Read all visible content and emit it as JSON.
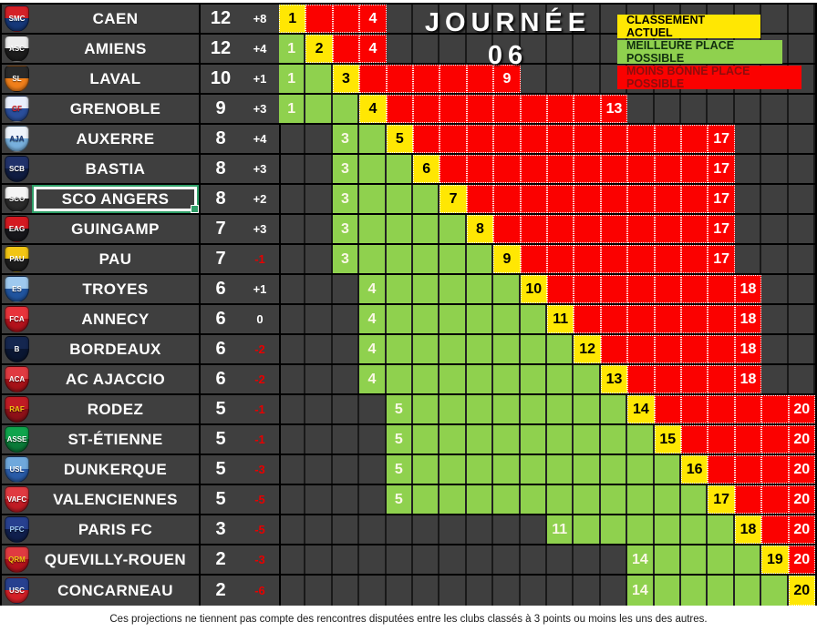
{
  "header": {
    "title": "JOURNÉE 06"
  },
  "legend": {
    "current": "CLASSEMENT ACTUEL",
    "best": "MEILLEURE PLACE POSSIBLE",
    "worst": "MOINS BONNE PLACE POSSIBLE"
  },
  "footer": {
    "note": "Ces projections ne tiennent pas compte des rencontres disputées entre les clubs classés à 3 points ou moins les uns des autres."
  },
  "grid": {
    "positions": 20
  },
  "colors": {
    "current_cell": "#ffe703",
    "best_cell": "#8fd14e",
    "worst_cell": "#fb0100",
    "background": "#3f3f3f",
    "negative_diff": "#e60000"
  },
  "standings": [
    {
      "name": "CAEN",
      "points": "12",
      "diff": "+8",
      "best": 1,
      "current": 1,
      "worst": 4,
      "selected": false,
      "logo": {
        "abbr": "SMC",
        "c1": "#d42027",
        "c2": "#16387a",
        "fg": "#ffffff"
      }
    },
    {
      "name": "AMIENS",
      "points": "12",
      "diff": "+4",
      "best": 1,
      "current": 2,
      "worst": 4,
      "selected": false,
      "logo": {
        "abbr": "ASC",
        "c1": "#ededed",
        "c2": "#1c1c1c",
        "fg": "#ffffff"
      }
    },
    {
      "name": "LAVAL",
      "points": "10",
      "diff": "+1",
      "best": 1,
      "current": 3,
      "worst": 9,
      "selected": false,
      "logo": {
        "abbr": "SL",
        "c1": "#2a2a2a",
        "c2": "#f07f1a",
        "fg": "#ffffff"
      }
    },
    {
      "name": "GRENOBLE",
      "points": "9",
      "diff": "+3",
      "best": 1,
      "current": 4,
      "worst": 13,
      "selected": false,
      "logo": {
        "abbr": "GF",
        "c1": "#e9effc",
        "c2": "#2a4e9b",
        "fg": "#d42027"
      }
    },
    {
      "name": "AUXERRE",
      "points": "8",
      "diff": "+4",
      "best": 3,
      "current": 5,
      "worst": 17,
      "selected": false,
      "logo": {
        "abbr": "AJA",
        "c1": "#eef4fb",
        "c2": "#78b0dd",
        "fg": "#1b3c7a"
      }
    },
    {
      "name": "BASTIA",
      "points": "8",
      "diff": "+3",
      "best": 3,
      "current": 6,
      "worst": 17,
      "selected": false,
      "logo": {
        "abbr": "SCB",
        "c1": "#20326b",
        "c2": "#101d42",
        "fg": "#ffffff"
      }
    },
    {
      "name": "SCO ANGERS",
      "points": "8",
      "diff": "+2",
      "best": 3,
      "current": 7,
      "worst": 17,
      "selected": true,
      "logo": {
        "abbr": "SCO",
        "c1": "#f5f5f5",
        "c2": "#2b2b2b",
        "fg": "#ffffff"
      }
    },
    {
      "name": "GUINGAMP",
      "points": "7",
      "diff": "+3",
      "best": 3,
      "current": 8,
      "worst": 17,
      "selected": false,
      "logo": {
        "abbr": "EAG",
        "c1": "#d41920",
        "c2": "#17171b",
        "fg": "#ffffff"
      }
    },
    {
      "name": "PAU",
      "points": "7",
      "diff": "-1",
      "best": 3,
      "current": 9,
      "worst": 17,
      "selected": false,
      "logo": {
        "abbr": "PAU",
        "c1": "#f2c514",
        "c2": "#1d1d1d",
        "fg": "#ffffff"
      }
    },
    {
      "name": "TROYES",
      "points": "6",
      "diff": "+1",
      "best": 4,
      "current": 10,
      "worst": 18,
      "selected": false,
      "logo": {
        "abbr": "ES",
        "c1": "#9ec9ef",
        "c2": "#20549e",
        "fg": "#ffffff"
      }
    },
    {
      "name": "ANNECY",
      "points": "6",
      "diff": "0",
      "best": 4,
      "current": 11,
      "worst": 18,
      "selected": false,
      "logo": {
        "abbr": "FCA",
        "c1": "#e8333b",
        "c2": "#b3121c",
        "fg": "#ffffff"
      }
    },
    {
      "name": "BORDEAUX",
      "points": "6",
      "diff": "-2",
      "best": 4,
      "current": 12,
      "worst": 18,
      "selected": false,
      "logo": {
        "abbr": "B",
        "c1": "#14264f",
        "c2": "#0a1632",
        "fg": "#ffffff"
      }
    },
    {
      "name": "AC AJACCIO",
      "points": "6",
      "diff": "-2",
      "best": 4,
      "current": 13,
      "worst": 18,
      "selected": false,
      "logo": {
        "abbr": "ACA",
        "c1": "#e03a41",
        "c2": "#a61218",
        "fg": "#ffffff"
      }
    },
    {
      "name": "RODEZ",
      "points": "5",
      "diff": "-1",
      "best": 5,
      "current": 14,
      "worst": 20,
      "selected": false,
      "logo": {
        "abbr": "RAF",
        "c1": "#c01b24",
        "c2": "#8e1118",
        "fg": "#f2c514"
      }
    },
    {
      "name": "ST-ÉTIENNE",
      "points": "5",
      "diff": "-1",
      "best": 5,
      "current": 15,
      "worst": 20,
      "selected": false,
      "logo": {
        "abbr": "ASSE",
        "c1": "#0fa44c",
        "c2": "#0a7a38",
        "fg": "#ffffff"
      }
    },
    {
      "name": "DUNKERQUE",
      "points": "5",
      "diff": "-3",
      "best": 5,
      "current": 16,
      "worst": 20,
      "selected": false,
      "logo": {
        "abbr": "USL",
        "c1": "#6fa8dc",
        "c2": "#2a5ca8",
        "fg": "#ffffff"
      }
    },
    {
      "name": "VALENCIENNES",
      "points": "5",
      "diff": "-5",
      "best": 5,
      "current": 17,
      "worst": 20,
      "selected": false,
      "logo": {
        "abbr": "VAFC",
        "c1": "#e03a41",
        "c2": "#c01b24",
        "fg": "#ffffff"
      }
    },
    {
      "name": "PARIS FC",
      "points": "3",
      "diff": "-5",
      "best": 11,
      "current": 18,
      "worst": 20,
      "selected": false,
      "logo": {
        "abbr": "PFC",
        "c1": "#27408f",
        "c2": "#101f4d",
        "fg": "#9ec9ef"
      }
    },
    {
      "name": "QUEVILLY-ROUEN",
      "points": "2",
      "diff": "-3",
      "best": 14,
      "current": 19,
      "worst": 20,
      "selected": false,
      "logo": {
        "abbr": "QRM",
        "c1": "#e03a41",
        "c2": "#b3121c",
        "fg": "#f2c514"
      }
    },
    {
      "name": "CONCARNEAU",
      "points": "2",
      "diff": "-6",
      "best": 14,
      "current": 20,
      "worst": 20,
      "selected": false,
      "logo": {
        "abbr": "USC",
        "c1": "#27408f",
        "c2": "#d42027",
        "fg": "#ffffff"
      }
    }
  ]
}
